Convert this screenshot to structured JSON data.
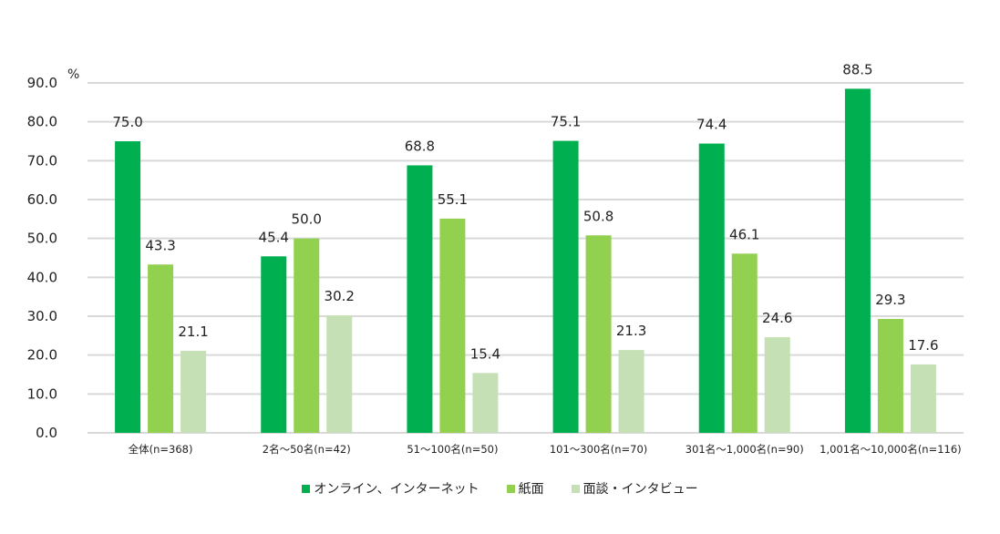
{
  "chart_data": {
    "type": "bar",
    "title": "",
    "xlabel": "",
    "ylabel": "%",
    "ylim": [
      0,
      90
    ],
    "yticks": [
      "0.0",
      "10.0",
      "20.0",
      "30.0",
      "40.0",
      "50.0",
      "60.0",
      "70.0",
      "80.0",
      "90.0"
    ],
    "grid": true,
    "legend_position": "bottom-center",
    "categories": [
      "全体(n=368)",
      "2名～50名(n=42)",
      "51～100名(n=50)",
      "101～300名(n=70)",
      "301名～1,000名(n=90)",
      "1,001名～10,000名(n=116)"
    ],
    "series": [
      {
        "name": "オンライン、インターネット",
        "color": "#00b050",
        "values": [
          75.0,
          45.4,
          68.8,
          75.1,
          74.4,
          88.5
        ]
      },
      {
        "name": "紙面",
        "color": "#92d050",
        "values": [
          43.3,
          50.0,
          55.1,
          50.8,
          46.1,
          29.3
        ]
      },
      {
        "name": "面談・インタビュー",
        "color": "#c5e0b4",
        "values": [
          21.1,
          30.2,
          15.4,
          21.3,
          24.6,
          17.6
        ]
      }
    ]
  }
}
